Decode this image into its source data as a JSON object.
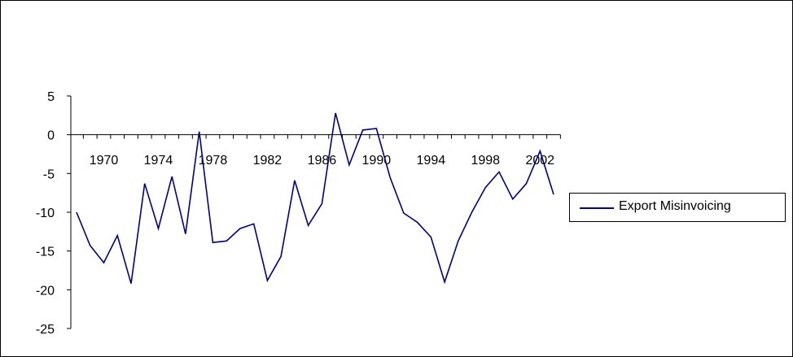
{
  "chart_data": {
    "type": "line",
    "title": "",
    "xlabel": "",
    "ylabel": "",
    "x": [
      1968,
      1969,
      1970,
      1971,
      1972,
      1973,
      1974,
      1975,
      1976,
      1977,
      1978,
      1979,
      1980,
      1981,
      1982,
      1983,
      1984,
      1985,
      1986,
      1987,
      1988,
      1989,
      1990,
      1991,
      1992,
      1993,
      1994,
      1995,
      1996,
      1997,
      1998,
      1999,
      2000,
      2001,
      2002,
      2003
    ],
    "series": [
      {
        "name": "Export Misinvoicing",
        "color": "#000080",
        "values": [
          -10.0,
          -14.3,
          -16.5,
          -13.0,
          -19.2,
          -6.3,
          -12.1,
          -5.4,
          -12.8,
          0.4,
          -13.9,
          -13.7,
          -12.1,
          -11.5,
          -18.8,
          -15.7,
          -5.9,
          -11.7,
          -8.9,
          2.8,
          -3.9,
          0.6,
          0.8,
          -5.5,
          -10.1,
          -11.3,
          -13.2,
          -19.0,
          -13.7,
          -10.0,
          -6.8,
          -4.8,
          -8.3,
          -6.3,
          -2.1,
          -7.7
        ]
      }
    ],
    "ylim": [
      -25,
      5
    ],
    "y_ticks": [
      "5",
      "0",
      "-5",
      "-10",
      "-15",
      "-20",
      "-25"
    ],
    "x_tick_labels": [
      "1970",
      "1974",
      "1978",
      "1982",
      "1986",
      "1990",
      "1994",
      "1998",
      "2002"
    ],
    "grid": false,
    "legend_position": "right"
  }
}
